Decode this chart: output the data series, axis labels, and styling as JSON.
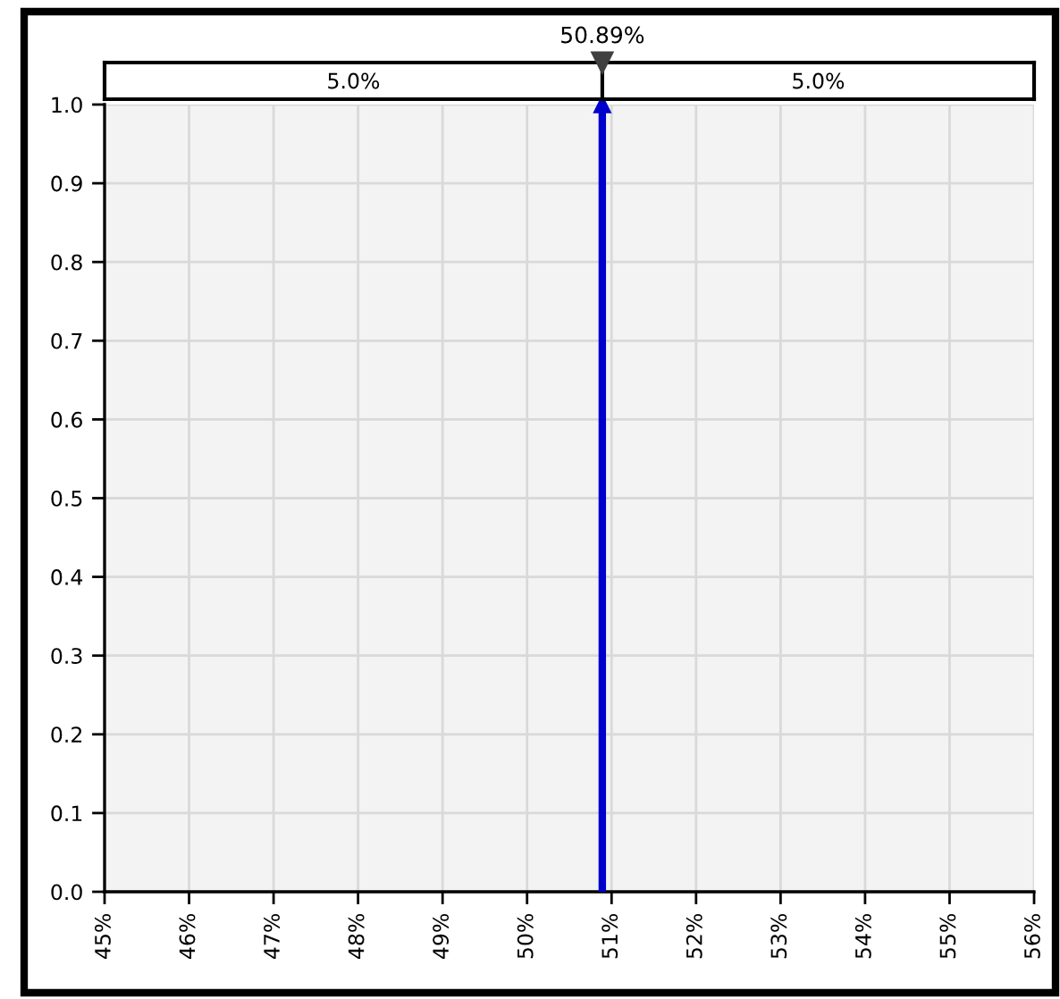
{
  "chart_data": {
    "type": "lollipop",
    "x": [
      50.89
    ],
    "values": [
      1.0
    ],
    "color": "#0000cc",
    "marker": "triangle",
    "xlim": [
      45,
      56
    ],
    "xticks": [
      {
        "value": 45,
        "label": "45%"
      },
      {
        "value": 46,
        "label": "46%"
      },
      {
        "value": 47,
        "label": "47%"
      },
      {
        "value": 48,
        "label": "48%"
      },
      {
        "value": 49,
        "label": "49%"
      },
      {
        "value": 50,
        "label": "50%"
      },
      {
        "value": 51,
        "label": "51%"
      },
      {
        "value": 52,
        "label": "52%"
      },
      {
        "value": 53,
        "label": "53%"
      },
      {
        "value": 54,
        "label": "54%"
      },
      {
        "value": 55,
        "label": "55%"
      },
      {
        "value": 56,
        "label": "56%"
      }
    ],
    "ylim": [
      0,
      1.0
    ],
    "yticks": [
      {
        "value": 0,
        "label": "0.0"
      },
      0.1,
      0.2,
      0.3,
      0.4,
      0.5,
      0.6,
      0.7,
      0.8,
      0.9,
      {
        "value": 1,
        "label": "1.0"
      }
    ],
    "grid": true,
    "ref_lines": [
      {
        "axis": "x",
        "value": 50.89,
        "label": "50.89%",
        "color": "#000000"
      }
    ],
    "annotations": [
      "5.0%",
      "5.0%"
    ]
  }
}
